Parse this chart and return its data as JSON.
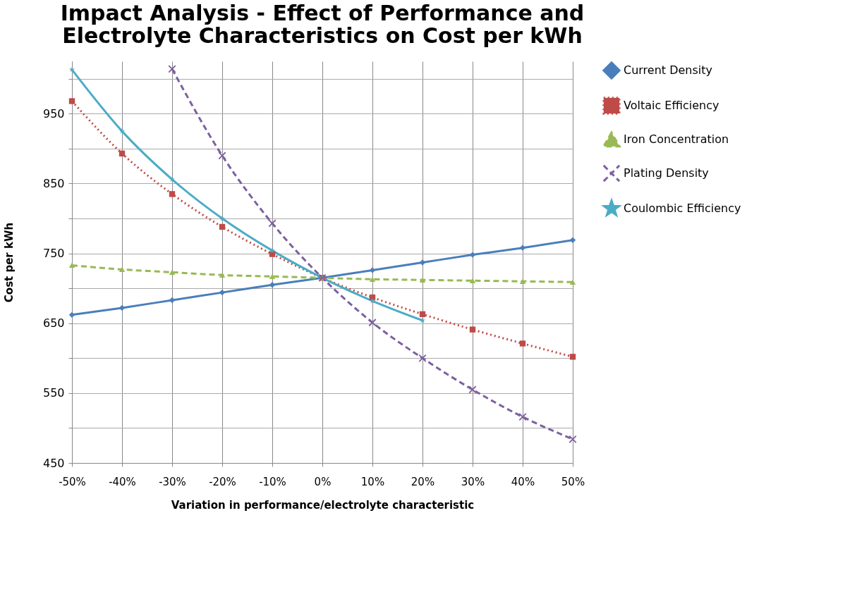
{
  "chart_data": {
    "type": "line",
    "title": "Impact Analysis - Effect of Performance and Electrolyte Characteristics on Cost per kWh",
    "xlabel": "Variation in performance/electrolyte characteristic",
    "ylabel": "Cost per kWh",
    "categories": [
      "-50%",
      "-40%",
      "-30%",
      "-20%",
      "-10%",
      "0%",
      "10%",
      "20%",
      "30%",
      "40%",
      "50%"
    ],
    "series": [
      {
        "name": "Current Density",
        "color": "#4a7ebb",
        "marker": "diamond",
        "line_style": "solid",
        "values": [
          662,
          672,
          683,
          694,
          705,
          715,
          726,
          737,
          748,
          758,
          769
        ]
      },
      {
        "name": "Voltaic Efficiency",
        "color": "#be4b48",
        "marker": "square",
        "line_style": "dotted",
        "values": [
          968,
          893,
          835,
          788,
          749,
          715,
          687,
          663,
          641,
          621,
          602
        ]
      },
      {
        "name": "Iron Concentration",
        "color": "#98b954",
        "marker": "triangle",
        "line_style": "dashed",
        "values": [
          733,
          727,
          723,
          719,
          717,
          715,
          713,
          712,
          711,
          710,
          709
        ]
      },
      {
        "name": "Plating Density",
        "color": "#7d60a0",
        "marker": "cross",
        "line_style": "dashed",
        "values": [
          null,
          null,
          1014,
          890,
          793,
          715,
          651,
          600,
          555,
          516,
          484
        ]
      },
      {
        "name": "Coulombic Efficiency",
        "color": "#4bacc6",
        "marker": "star",
        "line_style": "solid",
        "values": [
          1013,
          925,
          856,
          800,
          754,
          715,
          682,
          654,
          null,
          null,
          null
        ]
      }
    ],
    "ylim": [
      450,
      1025
    ],
    "yticks": [
      450,
      {
        "value": 500,
        "label": null
      },
      550,
      {
        "value": 600,
        "label": null
      },
      650,
      {
        "value": 700,
        "label": null
      },
      750,
      {
        "value": 800,
        "label": null
      },
      850,
      {
        "value": 900,
        "label": null
      },
      950,
      {
        "value": 1000,
        "label": null
      }
    ],
    "grid": true,
    "legend": "right"
  }
}
